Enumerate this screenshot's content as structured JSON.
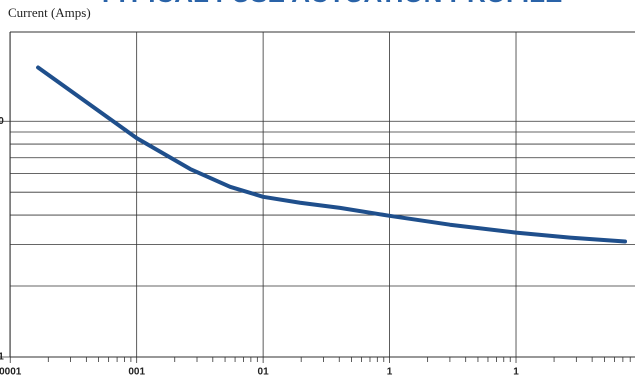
{
  "chart_data": {
    "type": "line",
    "title": "TYPICAL FUSE ACTUATION PROFILE",
    "y_label": "Current (Amps)",
    "log_x": true,
    "log_y": true,
    "grid": true,
    "x": [
      0.000166,
      0.001,
      0.00265,
      0.00548,
      0.01,
      0.0196,
      0.0406,
      0.1,
      0.3,
      1,
      2.67,
      7.28
    ],
    "series": [
      {
        "color": "#1f4f8c",
        "values": [
          16.9,
          8.48,
          6.27,
          5.27,
          4.78,
          4.51,
          4.29,
          3.97,
          3.64,
          3.37,
          3.21,
          3.09
        ]
      }
    ],
    "xlim": [
      8.3e-05,
      8.73
    ],
    "xticks": [
      {
        "value": 0.0001,
        "label": "0001"
      },
      {
        "value": 0.001,
        "label": "001"
      },
      {
        "value": 0.01,
        "label": "01"
      },
      {
        "value": 0.1,
        "label": "1"
      },
      {
        "value": 1,
        "label": "1"
      }
    ],
    "minor_xticks": [
      0.0002,
      0.0003,
      0.0004,
      0.0005,
      0.0006,
      0.0007,
      0.0008,
      0.0009,
      0.002,
      0.003,
      0.004,
      0.005,
      0.006,
      0.007,
      0.008,
      0.009,
      0.02,
      0.03,
      0.04,
      0.05,
      0.06,
      0.07,
      0.08,
      0.09,
      0.2,
      0.3,
      0.4,
      0.5,
      0.6,
      0.7,
      0.8,
      0.9,
      2,
      3,
      4,
      5,
      6,
      7,
      8
    ],
    "ylim": [
      1,
      23.9
    ],
    "yticks": [
      1,
      {
        "value": 10,
        "label": "0"
      }
    ],
    "minor_yticks": [
      2,
      3,
      4,
      5,
      6,
      7,
      8,
      9
    ]
  }
}
